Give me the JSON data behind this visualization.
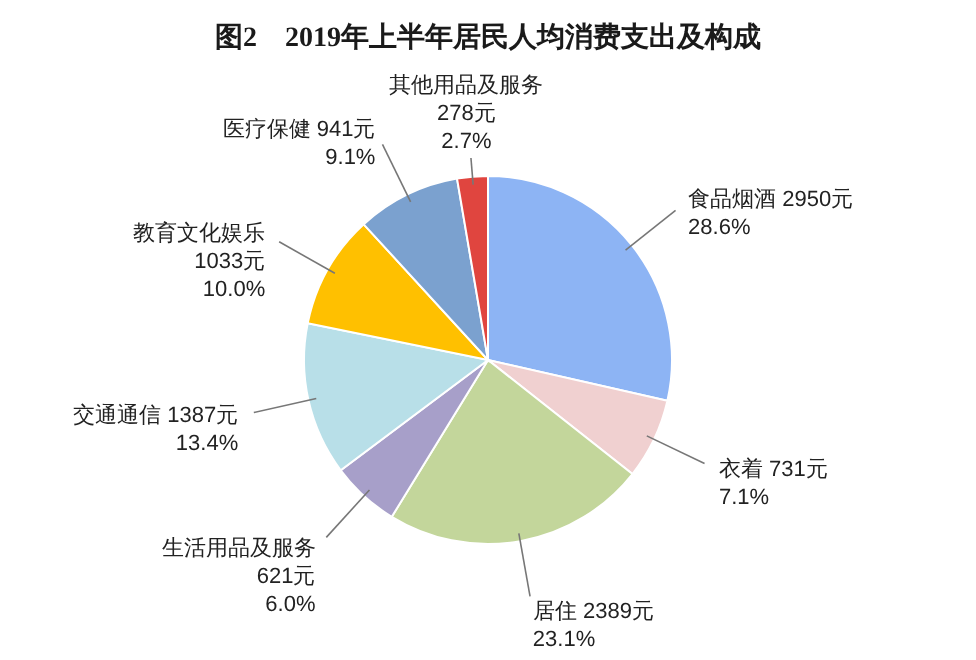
{
  "chart_data": {
    "type": "pie",
    "title": "图2　2019年上半年居民人均消费支出及构成",
    "categories": [
      "食品烟酒",
      "衣着",
      "居住",
      "生活用品及服务",
      "交通通信",
      "教育文化娱乐",
      "医疗保健",
      "其他用品及服务"
    ],
    "values": [
      2950,
      731,
      2389,
      621,
      1387,
      1033,
      941,
      278
    ],
    "colors": [
      "#8db4f4",
      "#f0d0d0",
      "#c3d69b",
      "#a79fc9",
      "#b8dfe8",
      "#ffc000",
      "#7ba1cf",
      "#e0453f"
    ],
    "value_labels": [
      "2950元\n28.6%",
      "731元\n7.1%",
      "2389元\n23.1%",
      "621元\n6.0%",
      "1387元\n13.4%",
      "1033元\n10.0%",
      "941元\n9.1%",
      "278元\n2.7%"
    ]
  }
}
